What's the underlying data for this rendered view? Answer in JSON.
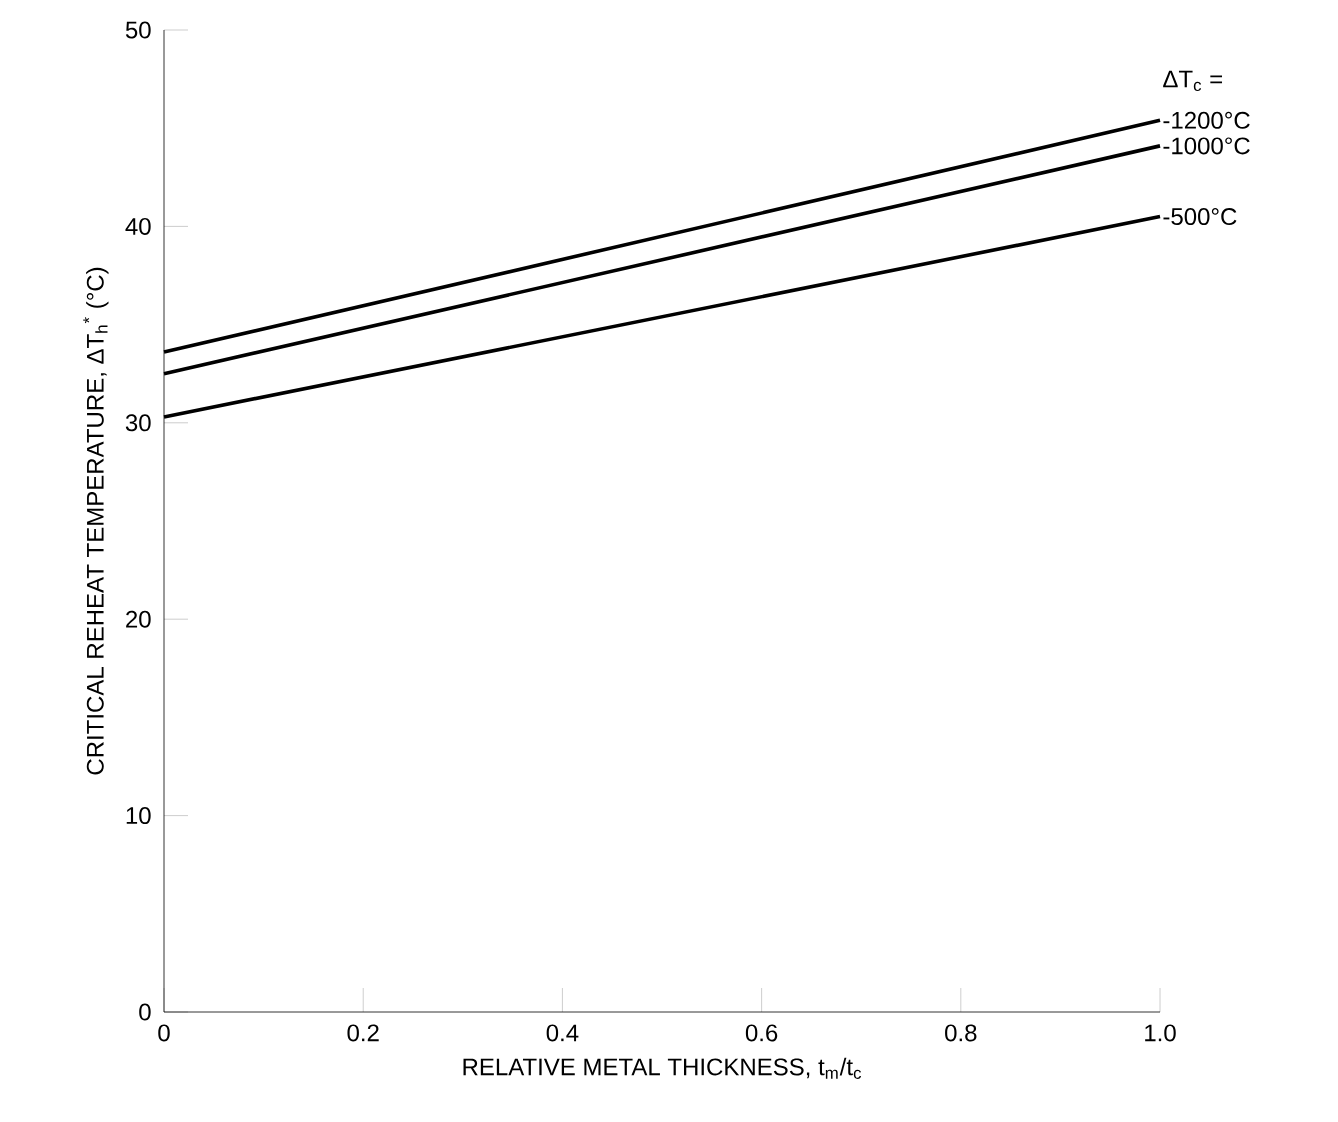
{
  "chart_data": {
    "type": "line",
    "xlabel": "RELATIVE METAL THICKNESS, t$_{m}$/t$_{c}$",
    "ylabel": "CRITICAL REHEAT TEMPERATURE, ΔT$_{h}$$^{*}$ (°C)",
    "legend_title": "ΔT$_{c}$ =",
    "x": [
      0,
      1
    ],
    "series": [
      {
        "name": "-1200°C",
        "color": "#000000",
        "values": [
          33.6,
          45.4
        ]
      },
      {
        "name": "-1000°C",
        "color": "#000000",
        "values": [
          32.5,
          44.1
        ]
      },
      {
        "name": "-500°C",
        "color": "#000000",
        "values": [
          30.3,
          40.5
        ]
      }
    ],
    "xlim": [
      0,
      1
    ],
    "ylim": [
      0,
      50
    ],
    "xticks": [
      0,
      0.2,
      0.4,
      0.6,
      0.8,
      {
        "value": 1,
        "label": "1.0"
      }
    ],
    "yticks": [
      0,
      10,
      20,
      30,
      40,
      50
    ],
    "marker": "none",
    "line_style": "solid",
    "grid": false
  }
}
